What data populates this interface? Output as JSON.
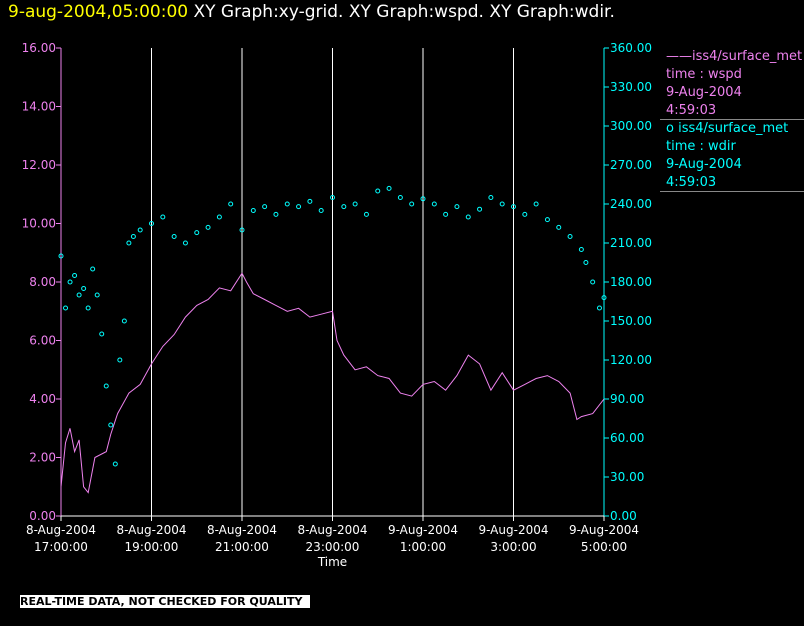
{
  "header": {
    "date_label": "9-aug-2004,05:00:00",
    "title": "XY Graph:xy-grid.  XY Graph:wspd.  XY Graph:wdir."
  },
  "legend": [
    {
      "marker": "——",
      "line1": "iss4/surface_met",
      "line2": "time : wspd",
      "line3": "9-Aug-2004",
      "line4": "4:59:03",
      "color": "#ee82ee"
    },
    {
      "marker": "o",
      "line1": "iss4/surface_met",
      "line2": "time : wdir",
      "line3": "9-Aug-2004",
      "line4": "4:59:03",
      "color": "#00ffff"
    }
  ],
  "footer": "REAL-TIME DATA, NOT CHECKED FOR QUALITY",
  "colors": {
    "wspd": "#ee82ee",
    "wdir": "#00ffff",
    "grid": "#ffffff",
    "header_date": "#ffff00"
  },
  "chart_data": {
    "type": "line",
    "xlabel": "Time",
    "x_ticks": [
      {
        "line1": "8-Aug-2004",
        "line2": "17:00:00",
        "hour": 0
      },
      {
        "line1": "8-Aug-2004",
        "line2": "19:00:00",
        "hour": 2
      },
      {
        "line1": "8-Aug-2004",
        "line2": "21:00:00",
        "hour": 4
      },
      {
        "line1": "8-Aug-2004",
        "line2": "23:00:00",
        "hour": 6
      },
      {
        "line1": "9-Aug-2004",
        "line2": "1:00:00",
        "hour": 8
      },
      {
        "line1": "9-Aug-2004",
        "line2": "3:00:00",
        "hour": 10
      },
      {
        "line1": "9-Aug-2004",
        "line2": "5:00:00",
        "hour": 12
      }
    ],
    "x_unit": "hours after 8-Aug-2004 17:00:00",
    "xlim": [
      0,
      12
    ],
    "grid": "vertical",
    "left_axis": {
      "ylim": [
        0,
        16
      ],
      "ticks": [
        "0.00",
        "2.00",
        "4.00",
        "6.00",
        "8.00",
        "10.00",
        "12.00",
        "14.00",
        "16.00"
      ],
      "color": "#ee82ee"
    },
    "right_axis": {
      "ylim": [
        0,
        360
      ],
      "ticks": [
        "0.00",
        "30.00",
        "60.00",
        "90.00",
        "120.00",
        "150.00",
        "180.00",
        "210.00",
        "240.00",
        "270.00",
        "300.00",
        "330.00",
        "360.00"
      ],
      "color": "#00ffff"
    },
    "series": [
      {
        "name": "iss4/surface_met time : wspd",
        "axis": "left",
        "style": "line",
        "x": [
          0,
          0.1,
          0.2,
          0.3,
          0.4,
          0.5,
          0.6,
          0.75,
          1.0,
          1.1,
          1.25,
          1.5,
          1.75,
          2.0,
          2.25,
          2.5,
          2.75,
          3.0,
          3.25,
          3.5,
          3.75,
          4.0,
          4.1,
          4.25,
          4.5,
          4.75,
          5.0,
          5.25,
          5.5,
          5.75,
          6.0,
          6.1,
          6.25,
          6.5,
          6.75,
          7.0,
          7.25,
          7.5,
          7.75,
          8.0,
          8.25,
          8.5,
          8.75,
          9.0,
          9.25,
          9.5,
          9.75,
          10.0,
          10.25,
          10.5,
          10.75,
          11.0,
          11.25,
          11.4,
          11.5,
          11.75,
          12.0
        ],
        "y": [
          1.0,
          2.5,
          3.0,
          2.2,
          2.6,
          1.0,
          0.8,
          2.0,
          2.2,
          2.8,
          3.5,
          4.2,
          4.5,
          5.2,
          5.8,
          6.2,
          6.8,
          7.2,
          7.4,
          7.8,
          7.7,
          8.3,
          8.0,
          7.6,
          7.4,
          7.2,
          7.0,
          7.1,
          6.8,
          6.9,
          7.0,
          6.0,
          5.5,
          5.0,
          5.1,
          4.8,
          4.7,
          4.2,
          4.1,
          4.5,
          4.6,
          4.3,
          4.8,
          5.5,
          5.2,
          4.3,
          4.9,
          4.3,
          4.5,
          4.7,
          4.8,
          4.6,
          4.2,
          3.3,
          3.4,
          3.5,
          4.0
        ]
      },
      {
        "name": "iss4/surface_met time : wdir",
        "axis": "right",
        "style": "marker",
        "x": [
          0,
          0.1,
          0.2,
          0.3,
          0.4,
          0.5,
          0.6,
          0.7,
          0.8,
          0.9,
          1.0,
          1.1,
          1.2,
          1.3,
          1.4,
          1.5,
          1.6,
          1.75,
          2.0,
          2.25,
          2.5,
          2.75,
          3.0,
          3.25,
          3.5,
          3.75,
          4.0,
          4.25,
          4.5,
          4.75,
          5.0,
          5.25,
          5.5,
          5.75,
          6.0,
          6.25,
          6.5,
          6.75,
          7.0,
          7.25,
          7.5,
          7.75,
          8.0,
          8.25,
          8.5,
          8.75,
          9.0,
          9.25,
          9.5,
          9.75,
          10.0,
          10.25,
          10.5,
          10.75,
          11.0,
          11.25,
          11.5,
          11.6,
          11.75,
          11.9,
          12.0
        ],
        "y": [
          200,
          160,
          180,
          185,
          170,
          175,
          160,
          190,
          170,
          140,
          100,
          70,
          40,
          120,
          150,
          210,
          215,
          220,
          225,
          230,
          215,
          210,
          218,
          222,
          230,
          240,
          220,
          235,
          238,
          232,
          240,
          238,
          242,
          235,
          245,
          238,
          240,
          232,
          250,
          252,
          245,
          240,
          244,
          240,
          232,
          238,
          230,
          236,
          245,
          240,
          238,
          232,
          240,
          228,
          222,
          215,
          205,
          195,
          180,
          160,
          168
        ]
      }
    ]
  }
}
